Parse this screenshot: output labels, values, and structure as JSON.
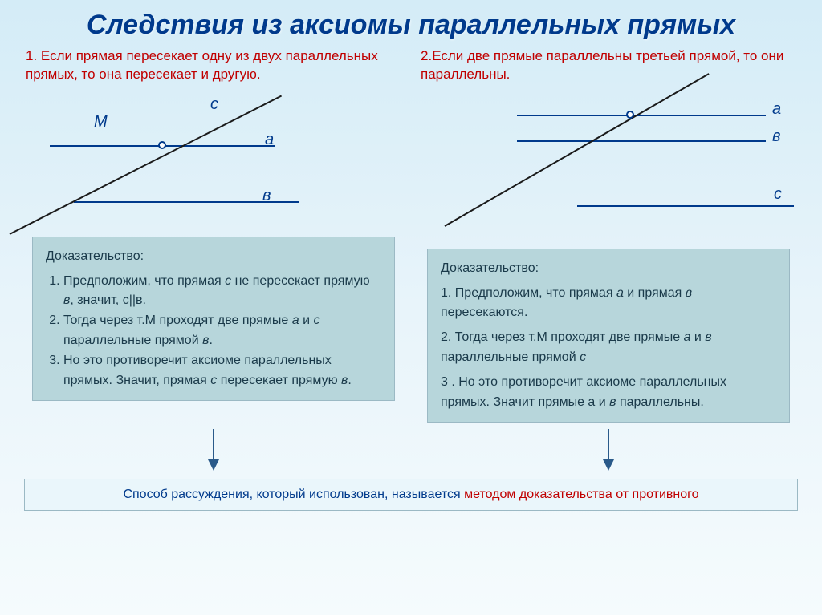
{
  "title": {
    "text": "Следствия из аксиомы параллельных прямых",
    "color": "#003a8c",
    "fontsize": 34
  },
  "theorem1": {
    "num": "1.",
    "prefix": "Если прямая пересекает одну из двух параллельных прямых, то она пересекает и другую",
    "color": "#c00000",
    "num_color": "#c00000"
  },
  "theorem2": {
    "num": "2.",
    "prefix": "Если две прямые параллельны третьей прямой, то они параллельны.",
    "color": "#c00000",
    "num_color": "#c00000"
  },
  "diagram1": {
    "labels": {
      "M": "М",
      "a": "а",
      "v": "в",
      "c": "с"
    },
    "label_color": "#003a8c",
    "line_color_blue": "#003a8c",
    "line_color_black": "#1a1a1a",
    "point_border": "#003a8c"
  },
  "diagram2": {
    "labels": {
      "a": "а",
      "v": "в",
      "c": "с"
    },
    "label_color": "#003a8c",
    "line_color_blue": "#003a8c",
    "line_color_black": "#1a1a1a",
    "c_line_color": "#003a8c",
    "point_border": "#003a8c"
  },
  "proof1": {
    "title": "Доказательство:",
    "items": [
      "Предположим, что прямая <i>с</i> не пересекает прямую <i>в</i>, значит, с||в.",
      "Тогда через т.М проходят две прямые <i>а</i> и <i>с</i> параллельные прямой <i>в</i>.",
      "Но это противоречит аксиоме параллельных прямых. Значит, прямая <i>с</i> пересекает прямую <i>в</i>."
    ],
    "bg": "#b7d6db",
    "text_color": "#1a3a4a"
  },
  "proof2": {
    "title": "Доказательство:",
    "items": [
      "Предположим, что прямая <i>а</i> и   прямая <i>в</i> пересекаются.",
      "Тогда через т.М проходят две прямые <i>а</i> и <i>в</i> параллельные прямой <i>с</i>",
      "Но это противоречит аксиоме параллельных прямых. Значит прямые а и <i>в</i> параллельны."
    ],
    "bg": "#b7d6db",
    "text_color": "#1a3a4a"
  },
  "conclusion": {
    "prefix": "Способ рассуждения, который использован, называется ",
    "highlight": "методом доказательства от противного",
    "prefix_color": "#003a8c",
    "highlight_color": "#c00000",
    "bg": "#eaf6fb"
  },
  "arrow": {
    "color": "#2a5a8a",
    "length": 50
  }
}
